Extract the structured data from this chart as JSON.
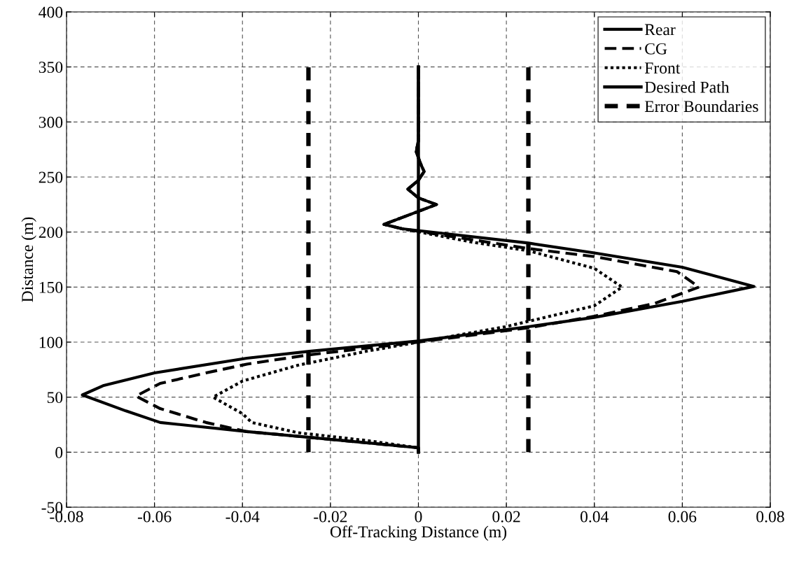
{
  "chart_data": {
    "type": "line",
    "xlabel": "Off-Tracking Distance (m)",
    "ylabel": "Distance (m)",
    "xlim": [
      -0.08,
      0.08
    ],
    "xticks": [
      -0.08,
      -0.06,
      -0.04,
      -0.02,
      0,
      0.02,
      0.04,
      0.06,
      0.08
    ],
    "ylim": [
      -50,
      400
    ],
    "yticks": [
      -50,
      0,
      50,
      100,
      150,
      200,
      250,
      300,
      350,
      400
    ],
    "grid": true,
    "legend": "top right",
    "series": [
      {
        "name": "Rear",
        "color": "#000000",
        "line_style": "solid",
        "x": [
          0,
          0,
          -0.0248,
          -0.039,
          -0.0587,
          -0.0665,
          -0.0764,
          -0.0717,
          -0.06,
          -0.039,
          -0.0248,
          0,
          0.025,
          0.04,
          0.06,
          0.0763,
          0.06,
          0.04,
          0.025,
          -0.0037,
          -0.0078,
          0.0041,
          0,
          -0.0024,
          0,
          0.0013,
          0.0005,
          -0.0005,
          0,
          0
        ],
        "values": [
          0,
          4,
          13.5,
          18.7,
          27,
          37.5,
          52,
          60.4,
          72,
          85.4,
          91.7,
          101,
          114,
          122.5,
          137,
          150.6,
          168,
          181,
          190,
          203,
          207,
          225,
          231,
          239,
          247,
          255,
          262,
          273,
          283,
          350
        ]
      },
      {
        "name": "CG",
        "color": "#000000",
        "line_style": "dashed",
        "x": [
          0,
          0,
          -0.0248,
          -0.039,
          -0.0483,
          -0.0587,
          -0.0642,
          -0.0587,
          -0.0483,
          -0.039,
          -0.0248,
          0,
          0.025,
          0.04,
          0.0536,
          0.0638,
          0.0588,
          0.04,
          0.025,
          -0.0037,
          -0.0078,
          0.0041,
          0,
          -0.0024,
          0,
          0.0013,
          0.0005,
          -0.0005,
          0,
          0
        ],
        "values": [
          0,
          4,
          13.5,
          18.7,
          27,
          39.6,
          51,
          62.5,
          72,
          80,
          88.5,
          100,
          113,
          123.5,
          135,
          150,
          164,
          177.7,
          185,
          203,
          207,
          225,
          231,
          239,
          247,
          255,
          262,
          273,
          283,
          350
        ]
      },
      {
        "name": "Front",
        "color": "#000000",
        "line_style": "dotted",
        "x": [
          0,
          0,
          -0.0118,
          -0.0274,
          -0.0379,
          -0.04,
          -0.0467,
          -0.04,
          -0.0274,
          -0.0118,
          0,
          0.0198,
          0.04,
          0.0463,
          0.04,
          0.025,
          0.012,
          -0.0037,
          -0.0078,
          0.0041,
          0,
          -0.0024,
          0,
          0.0013,
          0.0005,
          -0.0005,
          0,
          0
        ],
        "values": [
          0,
          4,
          10.6,
          17.7,
          27,
          35,
          50,
          64.6,
          79,
          91.7,
          100,
          114,
          133,
          150,
          167,
          183,
          191,
          203,
          207,
          225,
          231,
          239,
          247,
          255,
          262,
          273,
          283,
          350
        ]
      },
      {
        "name": "Desired Path",
        "color": "#000000",
        "line_style": "solid",
        "x": [
          0,
          0
        ],
        "values": [
          0,
          350
        ]
      },
      {
        "name": "Error Boundaries",
        "color": "#000000",
        "line_style": "dashed",
        "x": [
          -0.025,
          -0.025,
          null,
          0.025,
          0.025
        ],
        "values": [
          0,
          350,
          null,
          0,
          350
        ]
      }
    ]
  }
}
